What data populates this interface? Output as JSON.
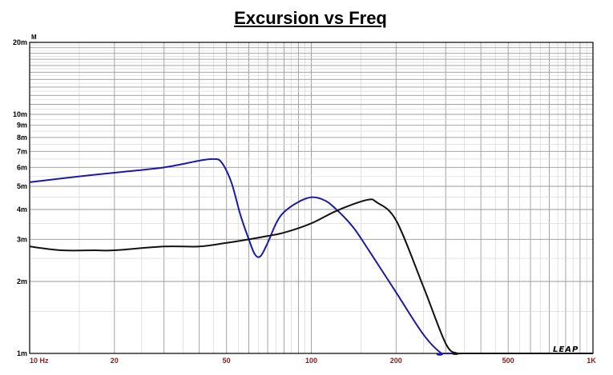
{
  "chart_data": {
    "type": "line",
    "title": "Excursion vs Freq",
    "ylabel": "M",
    "xscale": "log",
    "yscale": "log",
    "xlim": [
      10,
      1000
    ],
    "ylim": [
      0.001,
      0.02
    ],
    "grid": true,
    "x_ticks": [
      {
        "value": 10,
        "label": "10  Hz"
      },
      {
        "value": 20,
        "label": "20"
      },
      {
        "value": 50,
        "label": "50"
      },
      {
        "value": 100,
        "label": "100"
      },
      {
        "value": 200,
        "label": "200"
      },
      {
        "value": 500,
        "label": "500"
      },
      {
        "value": 1000,
        "label": "1K"
      }
    ],
    "y_ticks": [
      {
        "value": 0.02,
        "label": "20m"
      },
      {
        "value": 0.01,
        "label": "10m"
      },
      {
        "value": 0.009,
        "label": "9m"
      },
      {
        "value": 0.008,
        "label": "8m"
      },
      {
        "value": 0.007,
        "label": "7m"
      },
      {
        "value": 0.006,
        "label": "6m"
      },
      {
        "value": 0.005,
        "label": "5m"
      },
      {
        "value": 0.004,
        "label": "4m"
      },
      {
        "value": 0.003,
        "label": "3m"
      },
      {
        "value": 0.002,
        "label": "2m"
      },
      {
        "value": 0.001,
        "label": "1m"
      }
    ],
    "series": [
      {
        "color": "#1a1aa6",
        "x": [
          10,
          15,
          20,
          30,
          40,
          45,
          48,
          52,
          56,
          60,
          63,
          66,
          70,
          75,
          80,
          90,
          100,
          110,
          120,
          140,
          160,
          200,
          250,
          290,
          310,
          1000
        ],
        "y": [
          0.0052,
          0.0055,
          0.0057,
          0.006,
          0.0064,
          0.0065,
          0.0063,
          0.0052,
          0.0038,
          0.003,
          0.0026,
          0.00255,
          0.0029,
          0.0035,
          0.0039,
          0.0043,
          0.0045,
          0.0044,
          0.0041,
          0.0034,
          0.0027,
          0.0018,
          0.0012,
          0.001,
          0.001,
          0.001
        ]
      },
      {
        "color": "#111111",
        "x": [
          10,
          13,
          17,
          20,
          30,
          40,
          50,
          60,
          70,
          80,
          100,
          120,
          140,
          160,
          170,
          200,
          250,
          300,
          330,
          350,
          1000
        ],
        "y": [
          0.0028,
          0.0027,
          0.0027,
          0.0027,
          0.0028,
          0.0028,
          0.0029,
          0.003,
          0.0031,
          0.0032,
          0.0035,
          0.0039,
          0.0042,
          0.0044,
          0.0043,
          0.0036,
          0.0019,
          0.0011,
          0.001,
          0.001,
          0.001
        ]
      }
    ]
  },
  "branding": {
    "logo_text": "LEAP"
  }
}
